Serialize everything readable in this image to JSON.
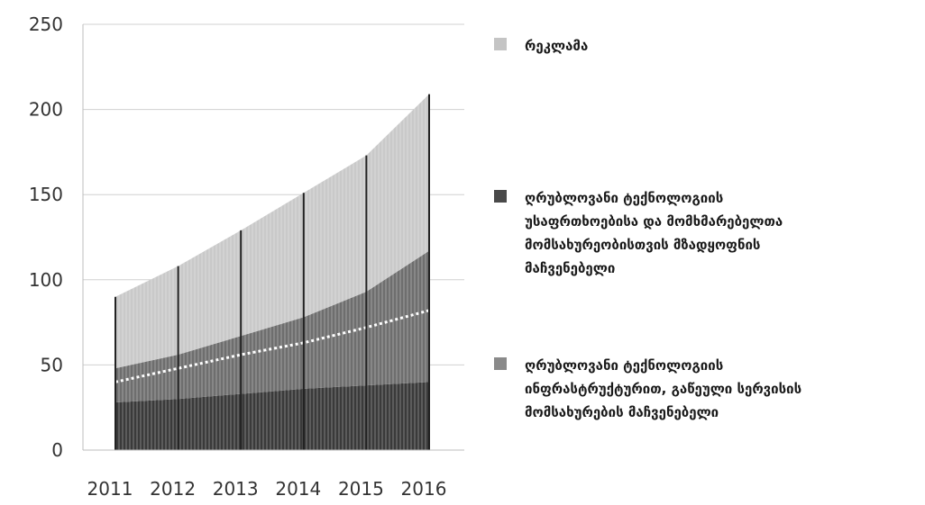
{
  "chart_data": {
    "type": "area",
    "x": [
      "2011",
      "2012",
      "2013",
      "2014",
      "2015",
      "2016"
    ],
    "ylim": [
      0,
      250
    ],
    "yticks": [
      "0",
      "50",
      "100",
      "150",
      "200",
      "250"
    ],
    "grid": "horizontal",
    "legend_position": "right",
    "series": [
      {
        "key": "base",
        "name": "",
        "values": [
          28,
          30,
          33,
          36,
          38,
          40
        ],
        "color": "#3a3a3a"
      },
      {
        "key": "infrastructure",
        "name": "ღრუბლოვანი ტექნოლოგიის ინფრასტრუქტურით, გაწეული სერვისის მომსახურების მაჩვენებელი",
        "values": [
          20,
          26,
          34,
          42,
          55,
          77
        ],
        "color": "#6e6e6e"
      },
      {
        "key": "security",
        "name": "ღრუბლოვანი ტექნოლოგიის უსაფრთხოებისა და მომხმარებელთა მომსახურეობისთვის მზადყოფნის მაჩვენებელი",
        "values": [
          0,
          0,
          0,
          0,
          0,
          0
        ],
        "color": "#4c4c4c"
      },
      {
        "key": "advertising",
        "name": "რეკლამა",
        "values": [
          42,
          52,
          62,
          73,
          80,
          92
        ],
        "color": "#c9c9c9"
      }
    ],
    "dotted_trend": {
      "values": [
        40,
        48,
        56,
        63,
        72,
        82
      ]
    },
    "totals": [
      90,
      108,
      129,
      151,
      173,
      209
    ]
  },
  "legend": [
    {
      "label": "რეკლამა",
      "swatch_color": "#c4c4c4"
    },
    {
      "label": "ღრუბლოვანი ტექნოლოგიის\nუსაფრთხოებისა და მომხმარებელთა\nმომსახურეობისთვის მზადყოფნის\nმაჩვენებელი",
      "swatch_color": "#4a4a4a"
    },
    {
      "label": "ღრუბლოვანი ტექნოლოგიის\nინფრასტრუქტურით, გაწეული სერვისის\nმომსახურების მაჩვენებელი",
      "swatch_color": "#8a8a8a"
    }
  ]
}
